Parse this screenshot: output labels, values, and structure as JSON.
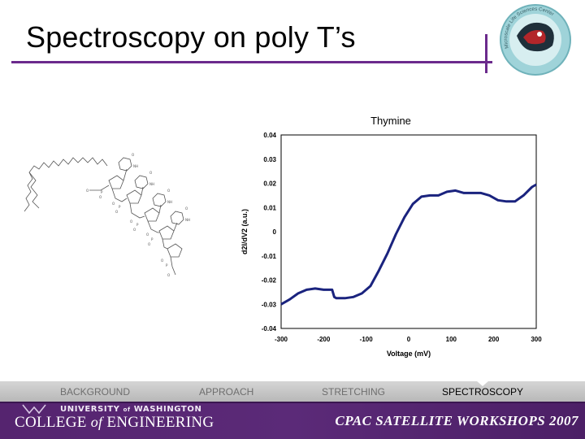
{
  "slide": {
    "title": "Spectroscopy on poly T’s",
    "logo_text": "Microscale Life Sciences Center"
  },
  "nav": {
    "items": [
      {
        "label": "BACKGROUND",
        "active": false
      },
      {
        "label": "APPROACH",
        "active": false
      },
      {
        "label": "STRETCHING",
        "active": false
      },
      {
        "label": "SPECTROSCOPY",
        "active": true
      }
    ]
  },
  "footer": {
    "university": "UNIVERSITY OF WASHINGTON",
    "university_of": "of",
    "university_name": "WASHINGTON",
    "university_prefix": "UNIVERSITY",
    "college_prefix": "COLLEGE",
    "college_of": "of",
    "college_name": "ENGINEERING",
    "workshops": "CPAC SATELLITE WORKSHOPS 2007"
  },
  "colors": {
    "accent": "#6b2a8c",
    "series": "#1a237e",
    "footer": "#55246f"
  },
  "chart_data": {
    "type": "line",
    "title": "Thymine",
    "xlabel": "Voltage (mV)",
    "ylabel": "d2I/dV2 (a.u.)",
    "xlim": [
      -300,
      300
    ],
    "ylim": [
      -0.04,
      0.04
    ],
    "xticks": [
      "-300",
      "-200",
      "-100",
      "0",
      "100",
      "200",
      "300"
    ],
    "yticks": [
      "0.04",
      "0.03",
      "0.02",
      "0.01",
      "0",
      "-0.01",
      "-0.02",
      "-0.03",
      "-0.04"
    ],
    "series": [
      {
        "x": [
          -300,
          -280,
          -260,
          -240,
          -220,
          -200,
          -180,
          -175,
          -170,
          -150,
          -130,
          -110,
          -90,
          -70,
          -50,
          -30,
          -10,
          10,
          30,
          50,
          70,
          90,
          110,
          130,
          150,
          170,
          190,
          210,
          230,
          250,
          270,
          290,
          300
        ],
        "y": [
          -0.03,
          -0.028,
          -0.0255,
          -0.024,
          -0.0235,
          -0.024,
          -0.024,
          -0.027,
          -0.0275,
          -0.0275,
          -0.027,
          -0.0255,
          -0.0225,
          -0.016,
          -0.009,
          -0.001,
          0.006,
          0.0115,
          0.0145,
          0.015,
          0.015,
          0.0165,
          0.017,
          0.016,
          0.016,
          0.016,
          0.015,
          0.013,
          0.0125,
          0.0125,
          0.015,
          0.0185,
          0.0195
        ]
      }
    ]
  }
}
